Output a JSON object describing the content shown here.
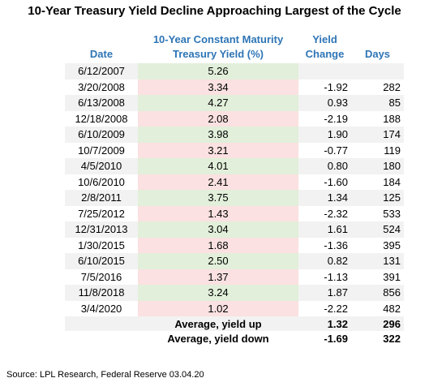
{
  "title": "10-Year Treasury Yield Decline Approaching Largest of the Cycle",
  "table": {
    "header": [
      "Date",
      "10-Year Constant Maturity Treasury Yield (%)",
      "Yield Change",
      "Days"
    ],
    "up_color": "#e2efda",
    "down_color": "#fbe1e1",
    "stripe_color": "#f2f2f2",
    "rows": [
      {
        "date": "6/12/2007",
        "yield": "5.26",
        "direction": "up"
      },
      {
        "date": "3/20/2008",
        "yield": "3.34",
        "change": "-1.92",
        "days": "282",
        "direction": "down"
      },
      {
        "date": "6/13/2008",
        "yield": "4.27",
        "change": "0.93",
        "days": "85",
        "direction": "up"
      },
      {
        "date": "12/18/2008",
        "yield": "2.08",
        "change": "-2.19",
        "days": "188",
        "direction": "down"
      },
      {
        "date": "6/10/2009",
        "yield": "3.98",
        "change": "1.90",
        "days": "174",
        "direction": "up"
      },
      {
        "date": "10/7/2009",
        "yield": "3.21",
        "change": "-0.77",
        "days": "119",
        "direction": "down"
      },
      {
        "date": "4/5/2010",
        "yield": "4.01",
        "change": "0.80",
        "days": "180",
        "direction": "up"
      },
      {
        "date": "10/6/2010",
        "yield": "2.41",
        "change": "-1.60",
        "days": "184",
        "direction": "down"
      },
      {
        "date": "2/8/2011",
        "yield": "3.75",
        "change": "1.34",
        "days": "125",
        "direction": "up"
      },
      {
        "date": "7/25/2012",
        "yield": "1.43",
        "change": "-2.32",
        "days": "533",
        "direction": "down"
      },
      {
        "date": "12/31/2013",
        "yield": "3.04",
        "change": "1.61",
        "days": "524",
        "direction": "up"
      },
      {
        "date": "1/30/2015",
        "yield": "1.68",
        "change": "-1.36",
        "days": "395",
        "direction": "down"
      },
      {
        "date": "6/10/2015",
        "yield": "2.50",
        "change": "0.82",
        "days": "131",
        "direction": "up"
      },
      {
        "date": "7/5/2016",
        "yield": "1.37",
        "change": "-1.13",
        "days": "391",
        "direction": "down"
      },
      {
        "date": "11/8/2018",
        "yield": "3.24",
        "change": "1.87",
        "days": "856",
        "direction": "up"
      },
      {
        "date": "3/4/2020",
        "yield": "1.02",
        "change": "-2.22",
        "days": "482",
        "direction": "down"
      }
    ],
    "averages": [
      {
        "label": "Average, yield up",
        "change": "1.32",
        "days": "296"
      },
      {
        "label": "Average, yield down",
        "change": "-1.69",
        "days": "322"
      }
    ]
  },
  "source": "Source: LPL Research,  Federal Reserve 03.04.20"
}
